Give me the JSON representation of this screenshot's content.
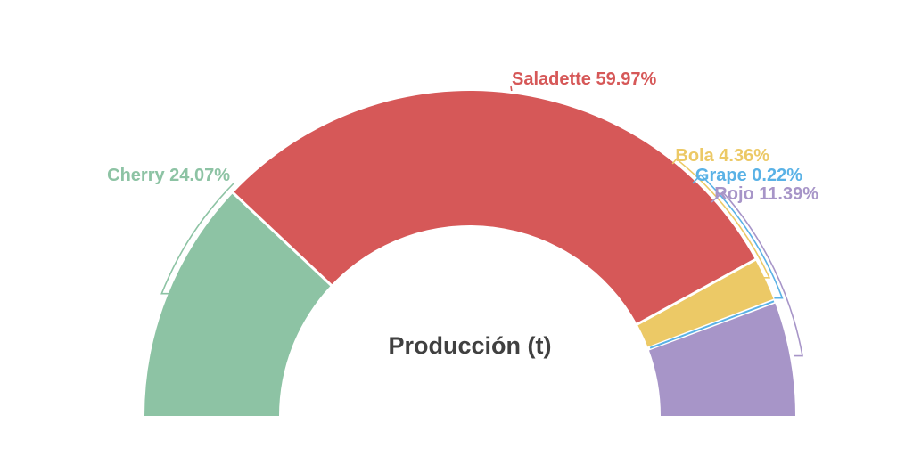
{
  "chart_data": {
    "type": "pie",
    "variant": "semicircle-donut",
    "title": "Producción (t)",
    "title_color": "#404040",
    "background": "#ffffff",
    "start_angle_deg": 180,
    "end_angle_deg": 0,
    "inner_radius_ratio": 0.585,
    "legend_position": "none",
    "gap_color": "#ffffff",
    "slices": [
      {
        "name": "Cherry",
        "value_pct": 24.07,
        "label": "Cherry 24.07%",
        "color": "#8dc3a4"
      },
      {
        "name": "Saladette",
        "value_pct": 59.97,
        "label": "Saladette 59.97%",
        "color": "#d65858"
      },
      {
        "name": "Bola",
        "value_pct": 4.36,
        "label": "Bola 4.36%",
        "color": "#ecc966"
      },
      {
        "name": "Grape",
        "value_pct": 0.22,
        "label": "Grape 0.22%",
        "color": "#5ab2e6"
      },
      {
        "name": "Rojo",
        "value_pct": 11.39,
        "label": "Rojo 11.39%",
        "color": "#a795c8"
      }
    ]
  }
}
